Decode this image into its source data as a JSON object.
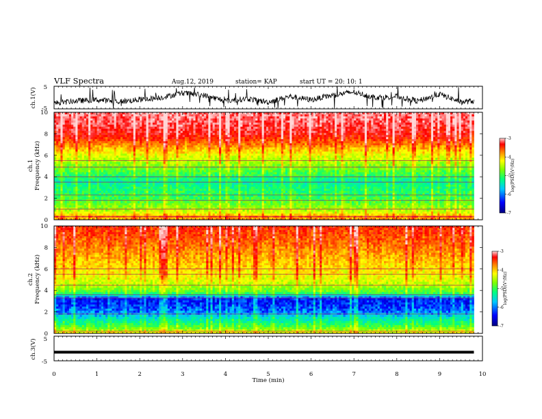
{
  "chart_data": {
    "type": "heatmap",
    "title": "VLF Spectra",
    "header": {
      "date": "Aug.12, 2019",
      "station": "station= KAP",
      "start": "start  UT =   20: 10: 1"
    },
    "xlabel": "Time  (min)",
    "xlim": [
      0,
      10
    ],
    "xticks": [
      "0",
      "1",
      "2",
      "3",
      "4",
      "5",
      "6",
      "7",
      "8",
      "9",
      "10"
    ],
    "panels": [
      {
        "kind": "waveform",
        "ylabel": "ch.1(V)",
        "ylim": [
          -5,
          5
        ],
        "yticks": [
          "5",
          "-5"
        ],
        "trace": {
          "data_end_min": 9.8,
          "baseline": [
            [
              0,
              -2.5
            ],
            [
              0.5,
              -1.5
            ],
            [
              1.0,
              -1.0
            ],
            [
              1.5,
              -1.8
            ],
            [
              2.0,
              -1.0
            ],
            [
              2.5,
              0.0
            ],
            [
              3.0,
              2.0
            ],
            [
              3.5,
              1.0
            ],
            [
              4.0,
              -1.5
            ],
            [
              4.5,
              -0.5
            ],
            [
              5.0,
              -2.0
            ],
            [
              5.5,
              0.5
            ],
            [
              6.0,
              -1.0
            ],
            [
              6.5,
              1.0
            ],
            [
              7.0,
              2.5
            ],
            [
              7.5,
              0.0
            ],
            [
              8.0,
              0.5
            ],
            [
              8.5,
              -1.5
            ],
            [
              9.0,
              1.5
            ],
            [
              9.5,
              -2.0
            ],
            [
              9.8,
              -1.5
            ]
          ]
        }
      },
      {
        "kind": "spectrogram",
        "ylabel": "ch.1",
        "ylabel2": "Frequency  (kHz)",
        "ylim": [
          0,
          10
        ],
        "yticks": [
          "0",
          "2",
          "4",
          "6",
          "8",
          "10"
        ],
        "data_end_min": 9.8,
        "bands": [
          [
            0,
            -4.2
          ],
          [
            0.3,
            -4.0
          ],
          [
            0.6,
            -4.6
          ],
          [
            1.0,
            -4.9
          ],
          [
            1.5,
            -5.1
          ],
          [
            2.0,
            -5.3
          ],
          [
            2.5,
            -5.4
          ],
          [
            3.0,
            -5.5
          ],
          [
            3.5,
            -5.6
          ],
          [
            4.0,
            -5.4
          ],
          [
            4.5,
            -5.2
          ],
          [
            5.0,
            -5.0
          ],
          [
            5.5,
            -4.8
          ],
          [
            6.0,
            -4.6
          ],
          [
            6.5,
            -4.3
          ],
          [
            7.0,
            -4.0
          ],
          [
            7.5,
            -3.7
          ],
          [
            8.0,
            -3.5
          ],
          [
            9.0,
            -3.3
          ],
          [
            10,
            -3.2
          ]
        ],
        "lines_khz": [
          0.3,
          1.0,
          1.8,
          2.3,
          3.5,
          4.0,
          4.9,
          5.5
        ],
        "colorbar": {
          "label": "log(PSD)(V²/Hz)",
          "ticks": [
            "-3",
            "-4",
            "-5",
            "-6",
            "-7"
          ],
          "range": [
            -7,
            -3
          ]
        }
      },
      {
        "kind": "spectrogram",
        "ylabel": "ch.2",
        "ylabel2": "Frequency  (kHz)",
        "ylim": [
          0,
          10
        ],
        "yticks": [
          "0",
          "2",
          "4",
          "6",
          "8",
          "10"
        ],
        "data_end_min": 9.8,
        "bands": [
          [
            0,
            -4.4
          ],
          [
            0.4,
            -5.0
          ],
          [
            1.0,
            -5.5
          ],
          [
            1.5,
            -5.8
          ],
          [
            2.0,
            -6.2
          ],
          [
            2.6,
            -6.4
          ],
          [
            3.2,
            -6.5
          ],
          [
            3.8,
            -5.2
          ],
          [
            4.5,
            -4.8
          ],
          [
            5.0,
            -4.6
          ],
          [
            6.0,
            -4.4
          ],
          [
            7.0,
            -4.2
          ],
          [
            8.0,
            -4.0
          ],
          [
            9.0,
            -3.8
          ],
          [
            10,
            -3.6
          ]
        ],
        "lines_khz": [
          0.2,
          1.8,
          3.3,
          3.6,
          4.5,
          5.5,
          6.0
        ],
        "colorbar": {
          "label": "log(PSD)(V²/Hz)",
          "ticks": [
            "-3",
            "-4",
            "-5",
            "-6",
            "-7"
          ],
          "range": [
            -7,
            -3
          ]
        }
      },
      {
        "kind": "waveform",
        "ylabel": "ch.3(V)",
        "ylim": [
          -5,
          5
        ],
        "yticks": [
          "5",
          "-5"
        ],
        "trace": {
          "data_end_min": 9.8,
          "baseline": [
            [
              0,
              -1.5
            ],
            [
              9.8,
              -1.5
            ]
          ]
        }
      }
    ],
    "colors": {
      "colormap": [
        "#000080",
        "#0000ff",
        "#00c8ff",
        "#00ff80",
        "#80ff00",
        "#ffff00",
        "#ff8000",
        "#ff0000",
        "#ffd8d8"
      ]
    }
  }
}
